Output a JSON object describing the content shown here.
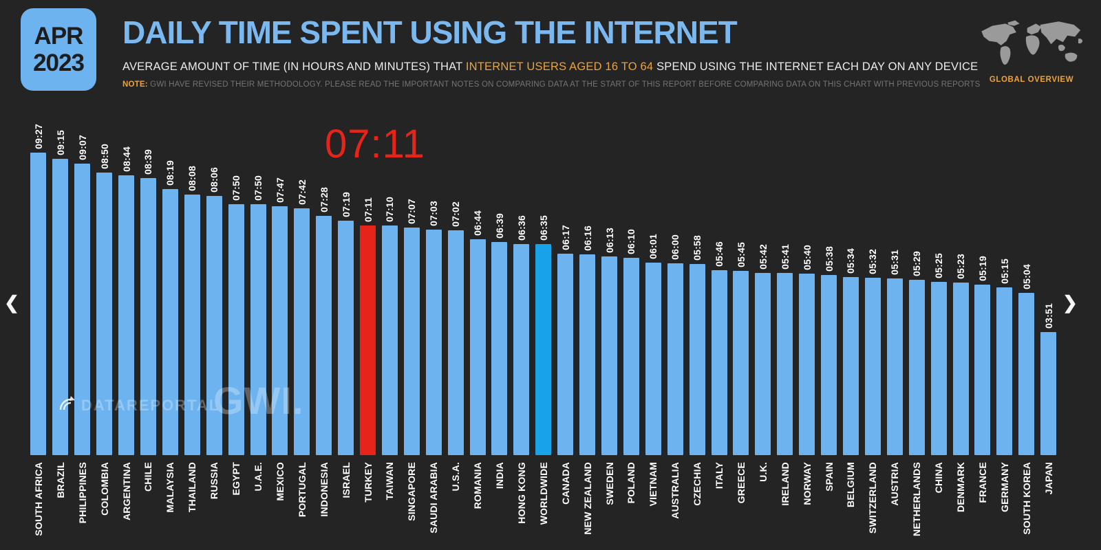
{
  "header": {
    "date_badge": {
      "month": "APR",
      "year": "2023"
    },
    "title": "DAILY TIME SPENT USING THE INTERNET",
    "subtitle_prefix": "AVERAGE AMOUNT OF TIME (IN HOURS AND MINUTES) THAT ",
    "subtitle_highlight": "INTERNET USERS AGED 16 TO 64",
    "subtitle_suffix": " SPEND USING THE INTERNET EACH DAY ON ANY DEVICE",
    "note_label": "NOTE:",
    "note_text": " GWI HAVE REVISED THEIR METHODOLOGY. PLEASE READ THE IMPORTANT NOTES ON COMPARING DATA AT THE START OF THIS REPORT BEFORE COMPARING DATA ON THIS CHART WITH PREVIOUS REPORTS",
    "overview_label": "GLOBAL OVERVIEW"
  },
  "callout": {
    "value": "07:11"
  },
  "nav": {
    "prev": "❮",
    "next": "❯"
  },
  "watermarks": {
    "datareportal": "DATAREPORTAL",
    "gwi": "GWI."
  },
  "colors": {
    "background": "#242424",
    "bar_default": "#6cb3ef",
    "bar_highlight_red": "#e6241a",
    "bar_highlight_accent": "#18a2e8",
    "title_blue": "#7bb8ef",
    "accent_orange": "#eda33b",
    "label_white": "#ffffff",
    "map_gray": "#9a9a9a"
  },
  "chart_data": {
    "type": "bar",
    "title": "DAILY TIME SPENT USING THE INTERNET",
    "value_format": "HH:MM (hours:minutes per day)",
    "xlabel": "",
    "ylabel": "",
    "grid": false,
    "legend": false,
    "max_value": "09:27",
    "highlight_red": "TURKEY",
    "highlight_accent": "WORLDWIDE",
    "categories": [
      "SOUTH AFRICA",
      "BRAZIL",
      "PHILIPPINES",
      "COLOMBIA",
      "ARGENTINA",
      "CHILE",
      "MALAYSIA",
      "THAILAND",
      "RUSSIA",
      "EGYPT",
      "U.A.E.",
      "MEXICO",
      "PORTUGAL",
      "INDONESIA",
      "ISRAEL",
      "TURKEY",
      "TAIWAN",
      "SINGAPORE",
      "SAUDI ARABIA",
      "U.S.A.",
      "ROMANIA",
      "INDIA",
      "HONG KONG",
      "WORLDWIDE",
      "CANADA",
      "NEW ZEALAND",
      "SWEDEN",
      "POLAND",
      "VIETNAM",
      "AUSTRALIA",
      "CZECHIA",
      "ITALY",
      "GREECE",
      "U.K.",
      "IRELAND",
      "NORWAY",
      "SPAIN",
      "BELGIUM",
      "SWITZERLAND",
      "AUSTRIA",
      "NETHERLANDS",
      "CHINA",
      "DENMARK",
      "FRANCE",
      "GERMANY",
      "SOUTH KOREA",
      "JAPAN"
    ],
    "values": [
      "09:27",
      "09:15",
      "09:07",
      "08:50",
      "08:44",
      "08:39",
      "08:19",
      "08:08",
      "08:06",
      "07:50",
      "07:50",
      "07:47",
      "07:42",
      "07:28",
      "07:19",
      "07:11",
      "07:10",
      "07:07",
      "07:03",
      "07:02",
      "06:44",
      "06:39",
      "06:36",
      "06:35",
      "06:17",
      "06:16",
      "06:13",
      "06:10",
      "06:01",
      "06:00",
      "05:58",
      "05:46",
      "05:45",
      "05:42",
      "05:41",
      "05:40",
      "05:38",
      "05:34",
      "05:32",
      "05:31",
      "05:29",
      "05:25",
      "05:23",
      "05:19",
      "05:15",
      "05:04",
      "03:51"
    ]
  }
}
